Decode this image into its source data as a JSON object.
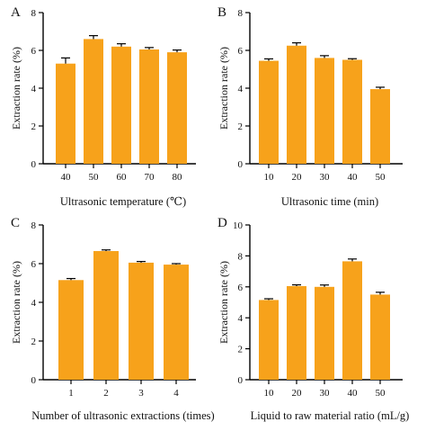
{
  "figure": {
    "bar_color": "#F7A21B"
  },
  "chart_data": [
    {
      "panel_label": "A",
      "type": "bar",
      "categories": [
        "40",
        "50",
        "60",
        "70",
        "80"
      ],
      "values": [
        5.3,
        6.6,
        6.2,
        6.05,
        5.9
      ],
      "errors": [
        0.3,
        0.18,
        0.15,
        0.1,
        0.12
      ],
      "xlabel": "Ultrasonic temperature (℃)",
      "ylabel": "Extraction rate (%)",
      "ylim": [
        0,
        8
      ],
      "yticks": [
        "0",
        "2",
        "4",
        "6",
        "8"
      ],
      "grid": false,
      "legend": "none"
    },
    {
      "panel_label": "B",
      "type": "bar",
      "categories": [
        "10",
        "20",
        "30",
        "40",
        "50"
      ],
      "values": [
        5.45,
        6.25,
        5.6,
        5.5,
        3.95
      ],
      "errors": [
        0.1,
        0.15,
        0.12,
        0.06,
        0.1
      ],
      "xlabel": "Ultrasonic time (min)",
      "ylabel": "Extraction rate (%)",
      "ylim": [
        0,
        8
      ],
      "yticks": [
        "0",
        "2",
        "4",
        "6",
        "8"
      ],
      "grid": false,
      "legend": "none"
    },
    {
      "panel_label": "C",
      "type": "bar",
      "categories": [
        "1",
        "2",
        "3",
        "4"
      ],
      "values": [
        5.15,
        6.65,
        6.05,
        5.95
      ],
      "errors": [
        0.08,
        0.06,
        0.06,
        0.05
      ],
      "xlabel": "Number of ultrasonic extractions (times)",
      "ylabel": "Extraction rate (%)",
      "ylim": [
        0,
        8
      ],
      "yticks": [
        "0",
        "2",
        "4",
        "6",
        "8"
      ],
      "grid": false,
      "legend": "none"
    },
    {
      "panel_label": "D",
      "type": "bar",
      "categories": [
        "10",
        "20",
        "30",
        "40",
        "50"
      ],
      "values": [
        5.15,
        6.05,
        6.0,
        7.65,
        5.5
      ],
      "errors": [
        0.08,
        0.08,
        0.12,
        0.15,
        0.15
      ],
      "xlabel": "Liquid to raw material ratio (mL/g)",
      "ylabel": "Extraction rate (%)",
      "ylim": [
        0,
        10
      ],
      "yticks": [
        "0",
        "2",
        "4",
        "6",
        "8",
        "10"
      ],
      "grid": false,
      "legend": "none"
    }
  ]
}
